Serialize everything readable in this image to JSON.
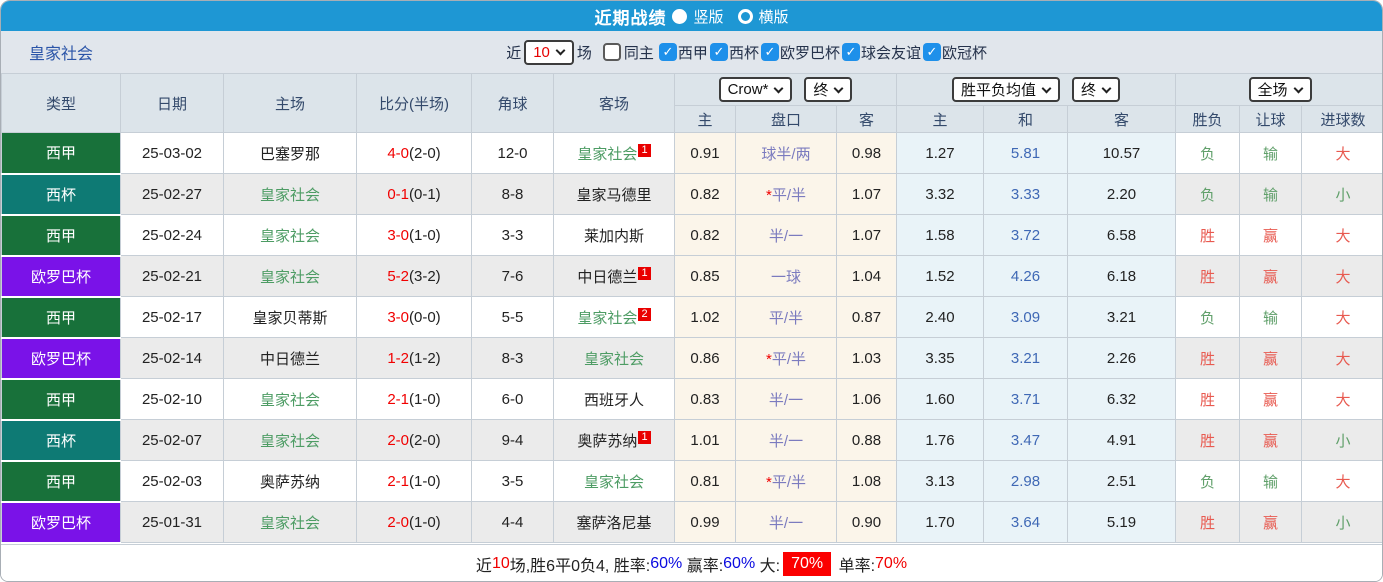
{
  "topbar": {
    "title": "近期战绩",
    "layout_options": [
      {
        "label": "竖版",
        "selected": true
      },
      {
        "label": "横版",
        "selected": false
      }
    ]
  },
  "filterbar": {
    "team": "皇家社会",
    "recent_label": "近",
    "recent_value": "10",
    "matches_label": "场",
    "same_home_label": "同主",
    "same_home_checked": false,
    "leagues": [
      {
        "label": "西甲",
        "checked": true
      },
      {
        "label": "西杯",
        "checked": true
      },
      {
        "label": "欧罗巴杯",
        "checked": true
      },
      {
        "label": "球会友谊",
        "checked": true
      },
      {
        "label": "欧冠杯",
        "checked": true
      }
    ]
  },
  "table": {
    "columns": {
      "type": "类型",
      "date": "日期",
      "home": "主场",
      "score": "比分(半场)",
      "corners": "角球",
      "away": "客场",
      "odds_company_select": "Crow*",
      "odds_final_select": "终",
      "avg_select": "胜平负均值",
      "avg_final_select": "终",
      "scope_select": "全场",
      "odds_sub": [
        "主",
        "盘口",
        "客"
      ],
      "avg_sub": [
        "主",
        "和",
        "客"
      ],
      "result_sub": [
        "胜负",
        "让球",
        "进球数"
      ]
    },
    "league_colors": {
      "西甲": "#18713a",
      "西杯": "#0e7a74",
      "欧罗巴杯": "#7a12e8"
    },
    "rows": [
      {
        "league": "西甲",
        "date": "25-03-02",
        "home": {
          "name": "巴塞罗那",
          "tracked": false,
          "badge": ""
        },
        "score": "4-0",
        "half": "(2-0)",
        "corners": "12-0",
        "away": {
          "name": "皇家社会",
          "tracked": true,
          "badge": "1"
        },
        "odds": [
          "0.91",
          "球半/两",
          "0.98"
        ],
        "avg": [
          "1.27",
          "5.81",
          "10.57"
        ],
        "results": [
          [
            "负",
            "g"
          ],
          [
            "输",
            "g"
          ],
          [
            "大",
            "r"
          ]
        ]
      },
      {
        "league": "西杯",
        "date": "25-02-27",
        "home": {
          "name": "皇家社会",
          "tracked": true,
          "badge": ""
        },
        "score": "0-1",
        "half": "(0-1)",
        "corners": "8-8",
        "away": {
          "name": "皇家马德里",
          "tracked": false,
          "badge": ""
        },
        "odds": [
          "0.82",
          "*平/半",
          "1.07"
        ],
        "avg": [
          "3.32",
          "3.33",
          "2.20"
        ],
        "results": [
          [
            "负",
            "g"
          ],
          [
            "输",
            "g"
          ],
          [
            "小",
            "g"
          ]
        ]
      },
      {
        "league": "西甲",
        "date": "25-02-24",
        "home": {
          "name": "皇家社会",
          "tracked": true,
          "badge": ""
        },
        "score": "3-0",
        "half": "(1-0)",
        "corners": "3-3",
        "away": {
          "name": "莱加内斯",
          "tracked": false,
          "badge": ""
        },
        "odds": [
          "0.82",
          "半/一",
          "1.07"
        ],
        "avg": [
          "1.58",
          "3.72",
          "6.58"
        ],
        "results": [
          [
            "胜",
            "r"
          ],
          [
            "赢",
            "r"
          ],
          [
            "大",
            "r"
          ]
        ]
      },
      {
        "league": "欧罗巴杯",
        "date": "25-02-21",
        "home": {
          "name": "皇家社会",
          "tracked": true,
          "badge": ""
        },
        "score": "5-2",
        "half": "(3-2)",
        "corners": "7-6",
        "away": {
          "name": "中日德兰",
          "tracked": false,
          "badge": "1"
        },
        "odds": [
          "0.85",
          "一球",
          "1.04"
        ],
        "avg": [
          "1.52",
          "4.26",
          "6.18"
        ],
        "results": [
          [
            "胜",
            "r"
          ],
          [
            "赢",
            "r"
          ],
          [
            "大",
            "r"
          ]
        ]
      },
      {
        "league": "西甲",
        "date": "25-02-17",
        "home": {
          "name": "皇家贝蒂斯",
          "tracked": false,
          "badge": ""
        },
        "score": "3-0",
        "half": "(0-0)",
        "corners": "5-5",
        "away": {
          "name": "皇家社会",
          "tracked": true,
          "badge": "2"
        },
        "odds": [
          "1.02",
          "平/半",
          "0.87"
        ],
        "avg": [
          "2.40",
          "3.09",
          "3.21"
        ],
        "results": [
          [
            "负",
            "g"
          ],
          [
            "输",
            "g"
          ],
          [
            "大",
            "r"
          ]
        ]
      },
      {
        "league": "欧罗巴杯",
        "date": "25-02-14",
        "home": {
          "name": "中日德兰",
          "tracked": false,
          "badge": ""
        },
        "score": "1-2",
        "half": "(1-2)",
        "corners": "8-3",
        "away": {
          "name": "皇家社会",
          "tracked": true,
          "badge": ""
        },
        "odds": [
          "0.86",
          "*平/半",
          "1.03"
        ],
        "avg": [
          "3.35",
          "3.21",
          "2.26"
        ],
        "results": [
          [
            "胜",
            "r"
          ],
          [
            "赢",
            "r"
          ],
          [
            "大",
            "r"
          ]
        ]
      },
      {
        "league": "西甲",
        "date": "25-02-10",
        "home": {
          "name": "皇家社会",
          "tracked": true,
          "badge": ""
        },
        "score": "2-1",
        "half": "(1-0)",
        "corners": "6-0",
        "away": {
          "name": "西班牙人",
          "tracked": false,
          "badge": ""
        },
        "odds": [
          "0.83",
          "半/一",
          "1.06"
        ],
        "avg": [
          "1.60",
          "3.71",
          "6.32"
        ],
        "results": [
          [
            "胜",
            "r"
          ],
          [
            "赢",
            "r"
          ],
          [
            "大",
            "r"
          ]
        ]
      },
      {
        "league": "西杯",
        "date": "25-02-07",
        "home": {
          "name": "皇家社会",
          "tracked": true,
          "badge": ""
        },
        "score": "2-0",
        "half": "(2-0)",
        "corners": "9-4",
        "away": {
          "name": "奥萨苏纳",
          "tracked": false,
          "badge": "1"
        },
        "odds": [
          "1.01",
          "半/一",
          "0.88"
        ],
        "avg": [
          "1.76",
          "3.47",
          "4.91"
        ],
        "results": [
          [
            "胜",
            "r"
          ],
          [
            "赢",
            "r"
          ],
          [
            "小",
            "g"
          ]
        ]
      },
      {
        "league": "西甲",
        "date": "25-02-03",
        "home": {
          "name": "奥萨苏纳",
          "tracked": false,
          "badge": ""
        },
        "score": "2-1",
        "half": "(1-0)",
        "corners": "3-5",
        "away": {
          "name": "皇家社会",
          "tracked": true,
          "badge": ""
        },
        "odds": [
          "0.81",
          "*平/半",
          "1.08"
        ],
        "avg": [
          "3.13",
          "2.98",
          "2.51"
        ],
        "results": [
          [
            "负",
            "g"
          ],
          [
            "输",
            "g"
          ],
          [
            "大",
            "r"
          ]
        ]
      },
      {
        "league": "欧罗巴杯",
        "date": "25-01-31",
        "home": {
          "name": "皇家社会",
          "tracked": true,
          "badge": ""
        },
        "score": "2-0",
        "half": "(1-0)",
        "corners": "4-4",
        "away": {
          "name": "塞萨洛尼基",
          "tracked": false,
          "badge": ""
        },
        "odds": [
          "0.99",
          "半/一",
          "0.90"
        ],
        "avg": [
          "1.70",
          "3.64",
          "5.19"
        ],
        "results": [
          [
            "胜",
            "r"
          ],
          [
            "赢",
            "r"
          ],
          [
            "小",
            "g"
          ]
        ]
      }
    ]
  },
  "summary": {
    "segments": [
      [
        "近",
        "k"
      ],
      [
        "10",
        "red"
      ],
      [
        "场,胜6平0负4, 胜率:",
        "k"
      ],
      [
        "60%",
        "blue"
      ],
      [
        " 赢率:",
        "k"
      ],
      [
        "60%",
        "blue"
      ],
      [
        " 大:",
        "k"
      ],
      [
        "70%",
        "badge"
      ],
      [
        " 单率:",
        "k"
      ],
      [
        "70%",
        "red"
      ]
    ]
  }
}
